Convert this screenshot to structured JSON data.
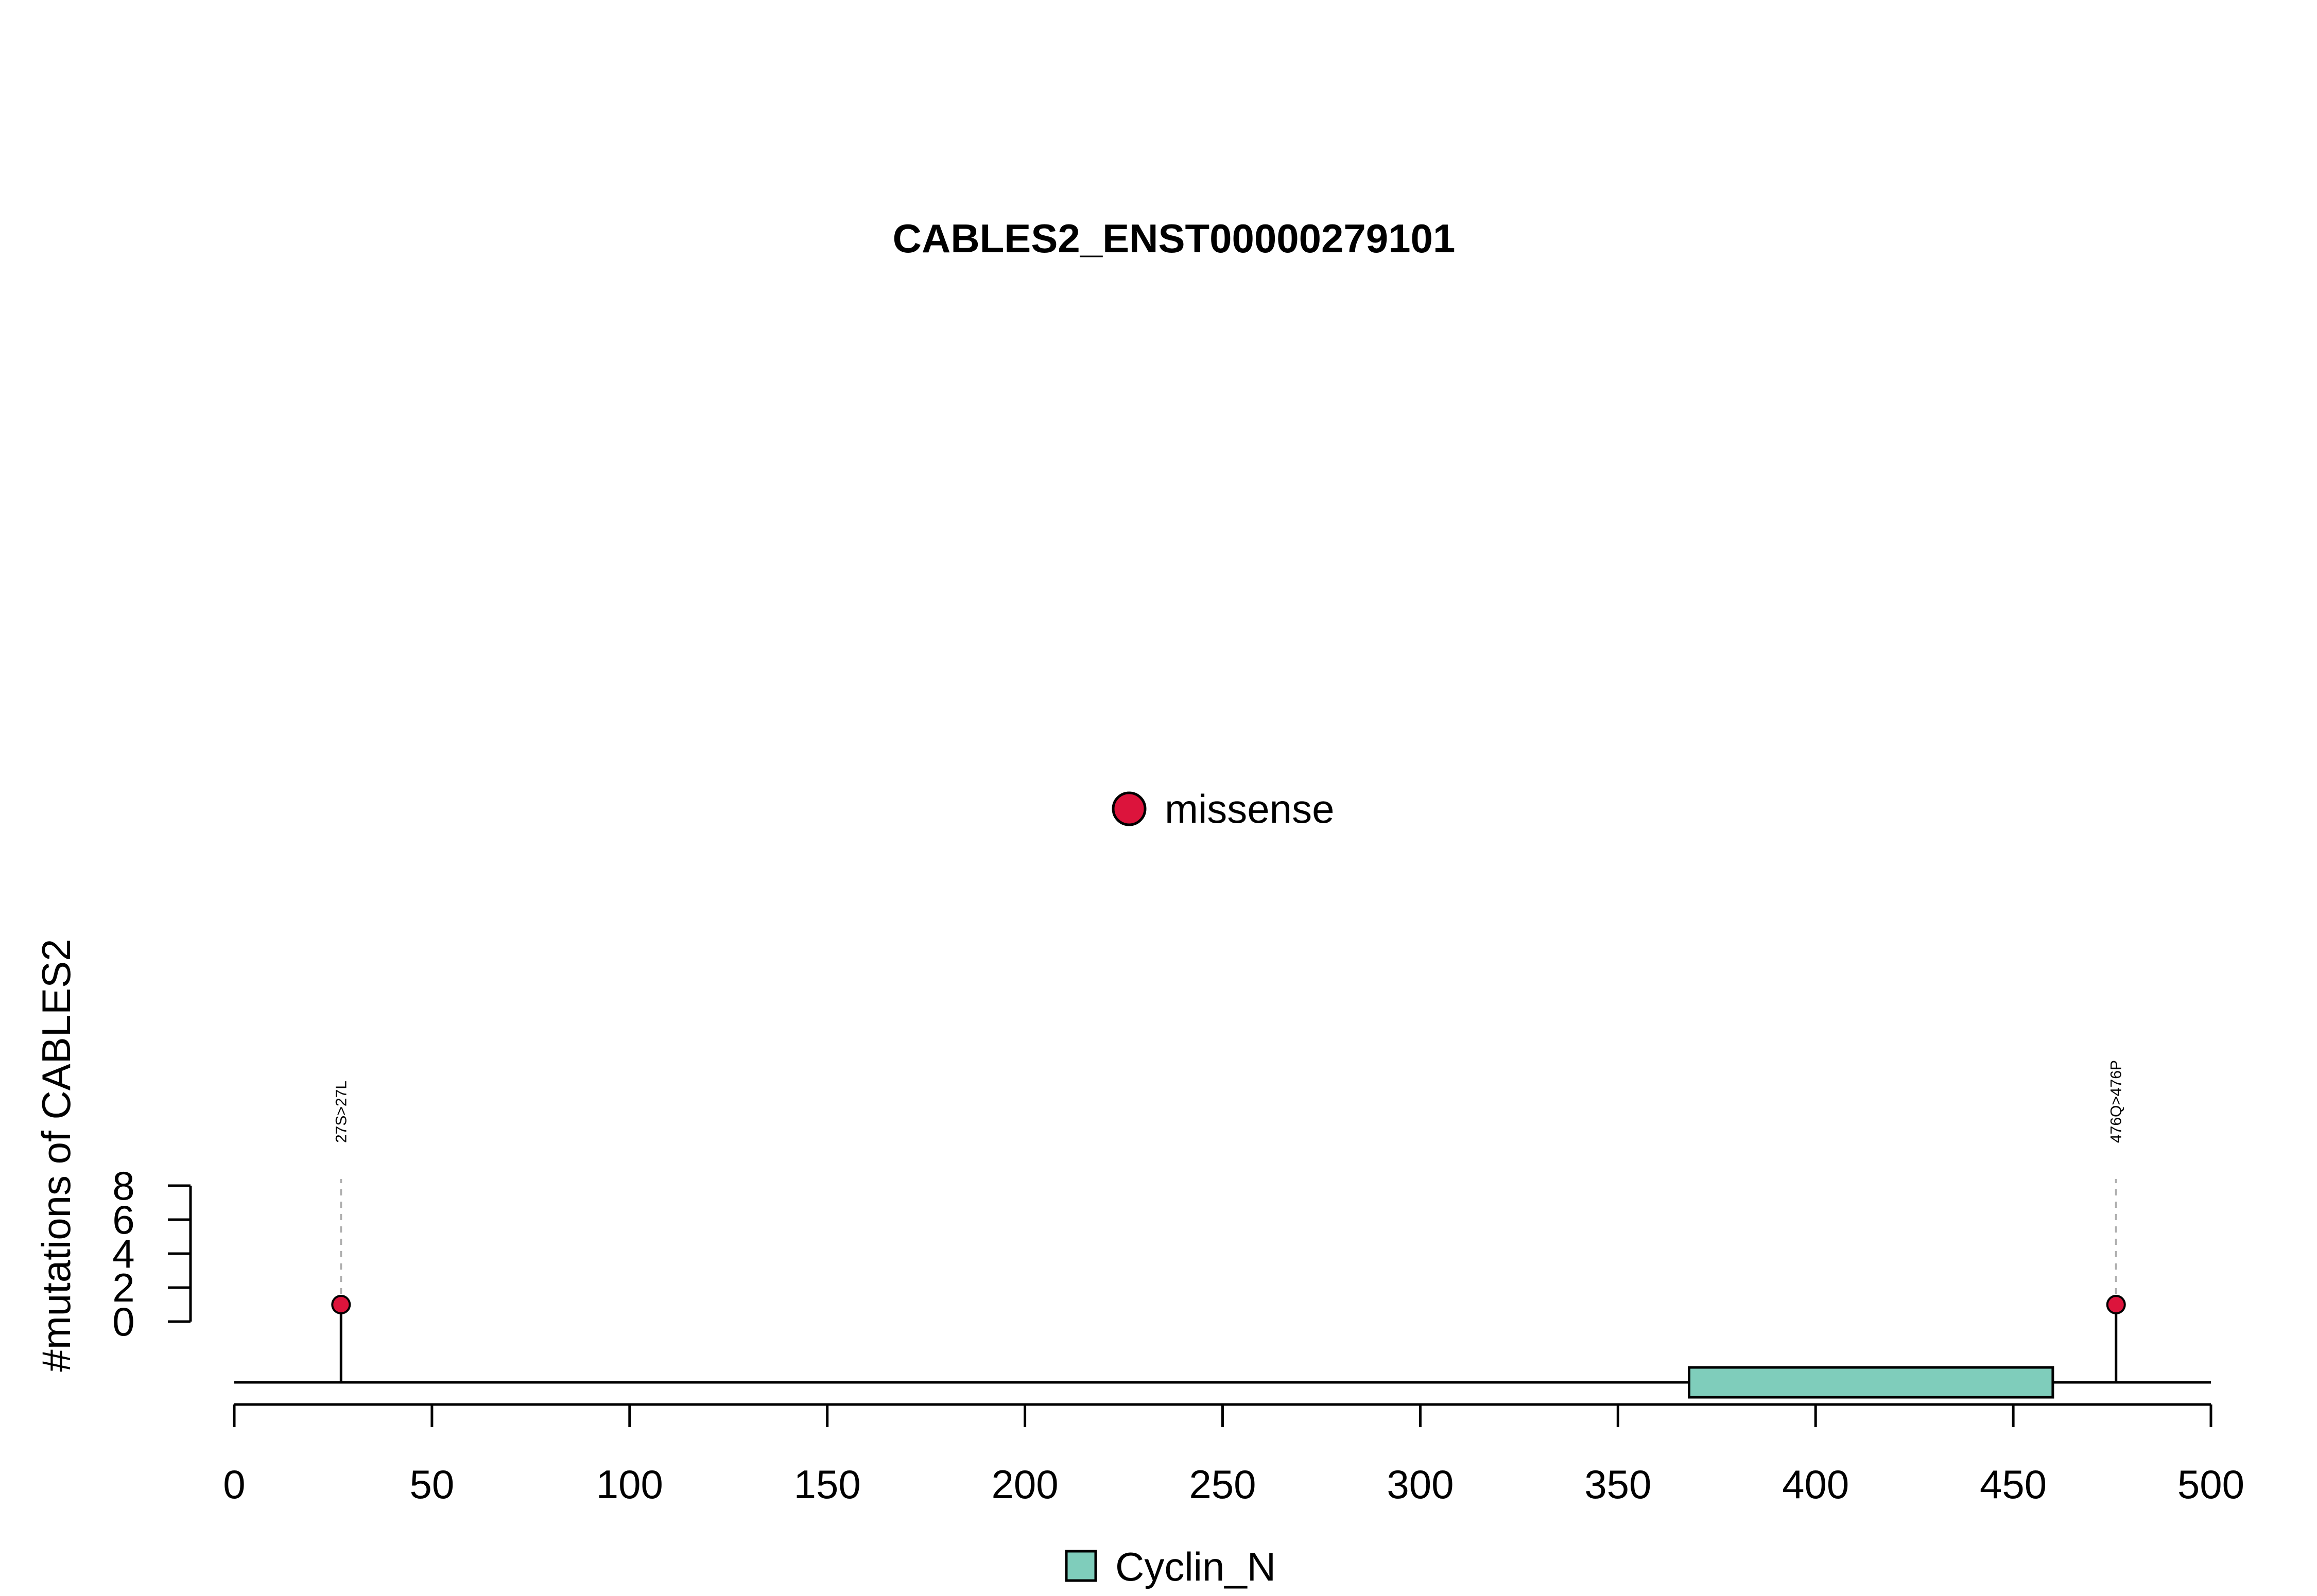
{
  "chart_data": {
    "type": "lollipop",
    "title": "CABLES2_ENST00000279101",
    "ylabel": "#mutations of CABLES2",
    "xlim": [
      0,
      500
    ],
    "x_ticks": [
      "0",
      "50",
      "100",
      "150",
      "200",
      "250",
      "300",
      "350",
      "400",
      "450",
      "500"
    ],
    "ylim": [
      0,
      8
    ],
    "y_ticks": [
      "0",
      "2",
      "4",
      "6",
      "8"
    ],
    "legend_top": [
      {
        "label": "missense",
        "color": "#dc143c"
      }
    ],
    "mutations": [
      {
        "position": 27,
        "count": 1,
        "label": "27S>27L",
        "type": "missense"
      },
      {
        "position": 476,
        "count": 1,
        "label": "476Q>476P",
        "type": "missense"
      }
    ],
    "domains": [
      {
        "name": "Cyclin_N",
        "start": 368,
        "end": 460,
        "color": "#7fcdbb"
      }
    ],
    "legend_bottom": [
      {
        "label": "Cyclin_N",
        "color": "#7fcdbb"
      }
    ]
  }
}
